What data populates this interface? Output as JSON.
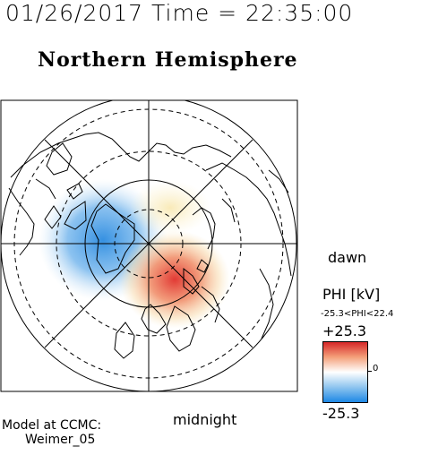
{
  "header": {
    "timestamp": "01/26/2017 Time = 22:35:00",
    "title": "Northern Hemisphere"
  },
  "map": {
    "direction_right": "dawn",
    "direction_bottom": "midnight"
  },
  "colorbar": {
    "variable_label": "PHI [kV]",
    "range_text": "-25.3<PHI<22.4",
    "max_label": "+25.3",
    "min_label": "-25.3",
    "zero_label": "0",
    "colors": {
      "max": "#d62728",
      "mid": "#ffffff",
      "min": "#1e88e5"
    }
  },
  "model": {
    "line1": "Model at CCMC:",
    "line2": "Weimer_05"
  }
}
